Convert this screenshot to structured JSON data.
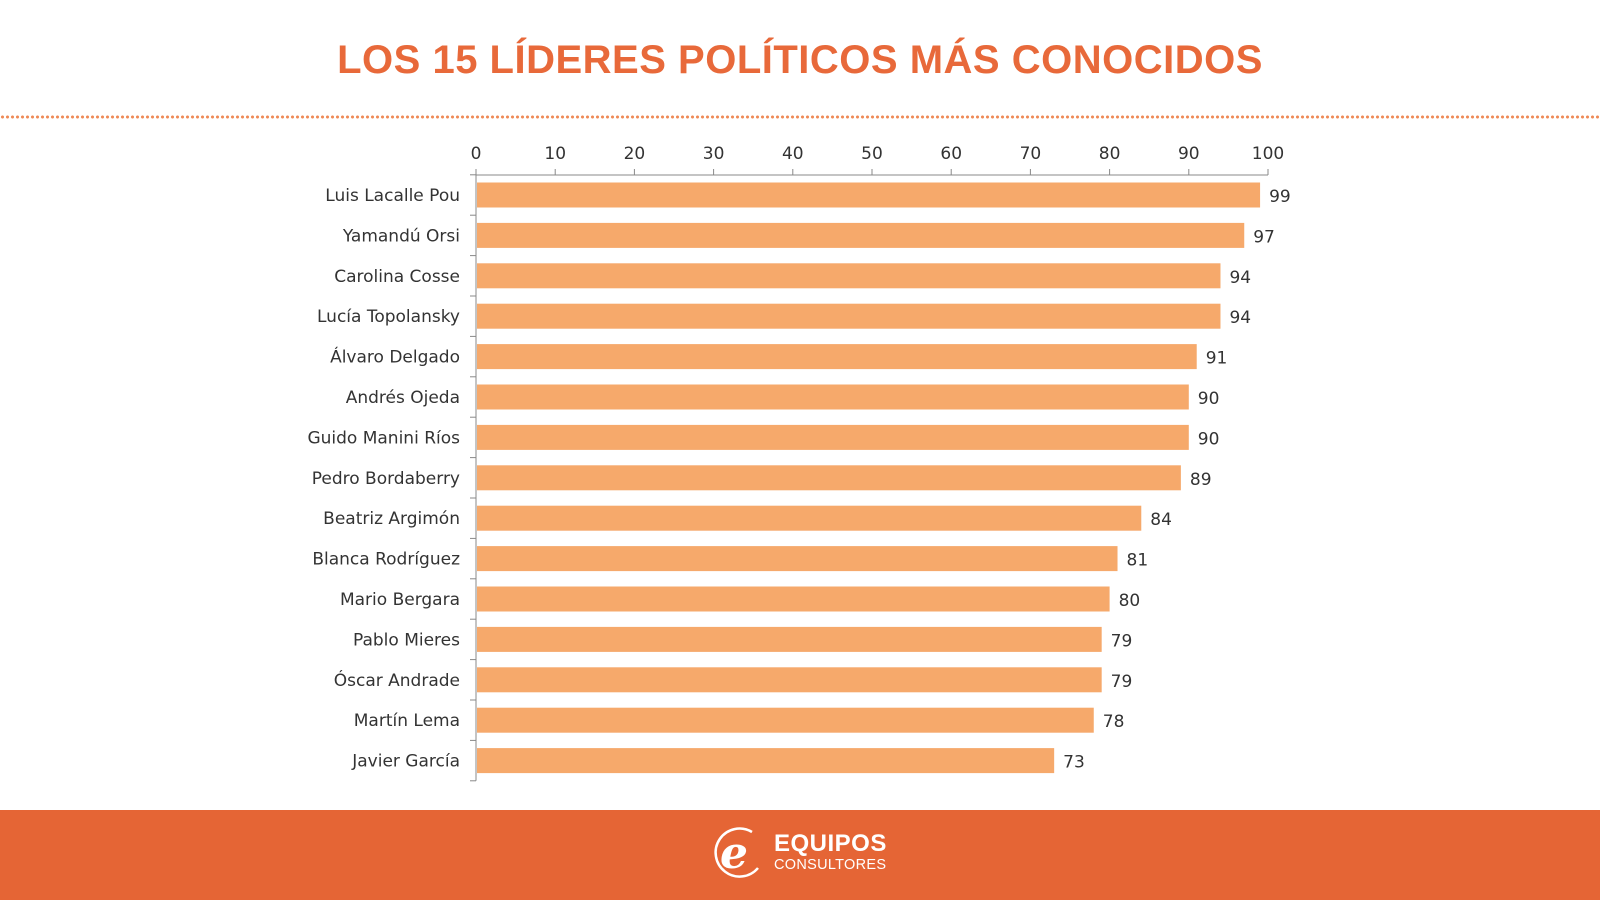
{
  "header": {
    "title": "LOS 15 LÍDERES POLÍTICOS MÁS CONOCIDOS"
  },
  "colors": {
    "accent": "#e8693a",
    "bar": "#f6a96b",
    "footer": "#e56535",
    "text": "#333333"
  },
  "chart_data": {
    "type": "bar",
    "orientation": "horizontal",
    "title": "LOS 15 LÍDERES POLÍTICOS MÁS CONOCIDOS",
    "xlabel": "",
    "ylabel": "",
    "xlim": [
      0,
      100
    ],
    "xticks": [
      0,
      10,
      20,
      30,
      40,
      50,
      60,
      70,
      80,
      90,
      100
    ],
    "xaxis_position": "top",
    "grid": false,
    "legend": "none",
    "categories": [
      "Luis Lacalle Pou",
      "Yamandú Orsi",
      "Carolina Cosse",
      "Lucía Topolansky",
      "Álvaro Delgado",
      "Andrés Ojeda",
      "Guido Manini Ríos",
      "Pedro Bordaberry",
      "Beatriz Argimón",
      "Blanca Rodríguez",
      "Mario Bergara",
      "Pablo Mieres",
      "Óscar Andrade",
      "Martín Lema",
      "Javier García"
    ],
    "values": [
      99,
      97,
      94,
      94,
      91,
      90,
      90,
      89,
      84,
      81,
      80,
      79,
      79,
      78,
      73
    ],
    "data_labels": true
  },
  "footer": {
    "logo_icon": "e-letter-logo-icon",
    "brand_main": "EQUIPOS",
    "brand_sub": "CONSULTORES"
  }
}
